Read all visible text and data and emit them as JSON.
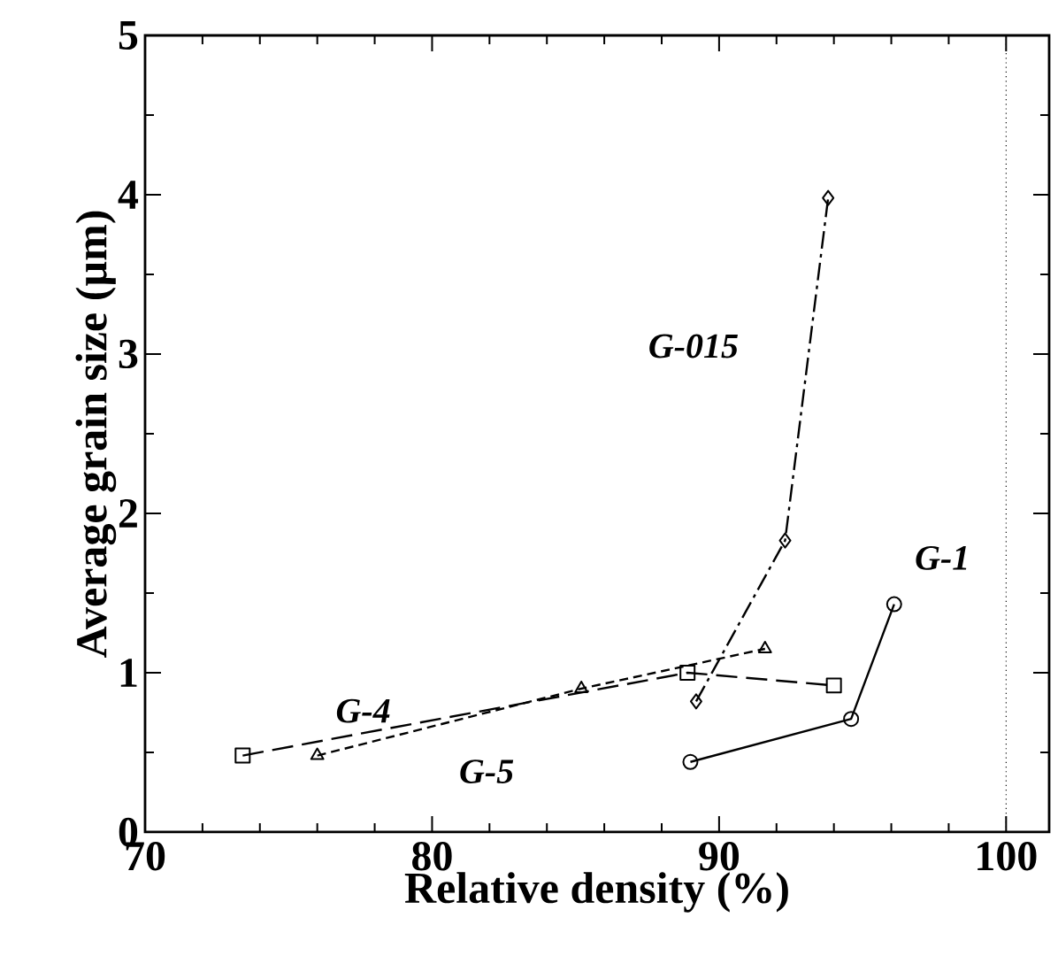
{
  "chart_data": {
    "type": "line",
    "xlabel": "Relative density (%)",
    "ylabel": "Average grain size (µm)",
    "xlim": [
      70,
      101.5
    ],
    "ylim": [
      0,
      5
    ],
    "xticks": [
      70,
      80,
      90,
      100
    ],
    "yticks": [
      0,
      1,
      2,
      3,
      4,
      5
    ],
    "grid": false,
    "series": [
      {
        "name": "G-1",
        "color": "#000000",
        "marker": "circle",
        "line_style": "solid",
        "x": [
          89.0,
          94.6,
          96.1
        ],
        "values": [
          0.44,
          0.71,
          1.43
        ]
      },
      {
        "name": "G-4",
        "color": "#000000",
        "marker": "square",
        "line_style": "dashed",
        "x": [
          73.4,
          88.9,
          94.0
        ],
        "values": [
          0.48,
          1.0,
          0.92
        ]
      },
      {
        "name": "G-5",
        "color": "#000000",
        "marker": "triangle",
        "line_style": "dashed",
        "x": [
          76.0,
          85.2,
          91.6
        ],
        "values": [
          0.48,
          0.9,
          1.15
        ]
      },
      {
        "name": "G-015",
        "color": "#000000",
        "marker": "diamond",
        "line_style": "dashed",
        "x": [
          89.2,
          92.3,
          93.8
        ],
        "values": [
          0.82,
          1.83,
          3.98
        ]
      }
    ],
    "ref_lines": [
      {
        "axis": "x",
        "value": 100,
        "line_style": "dotted",
        "color": "#000000"
      }
    ]
  }
}
